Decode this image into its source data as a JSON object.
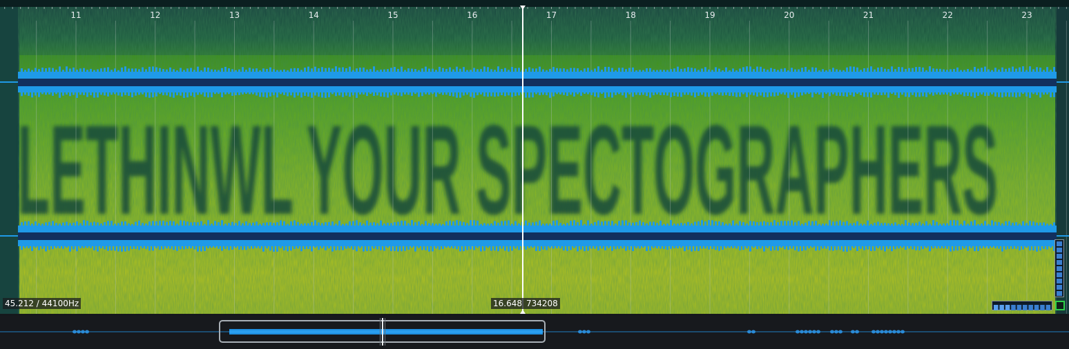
{
  "timeline": {
    "ticks": [
      "11",
      "12",
      "13",
      "14",
      "15",
      "16",
      "17",
      "18",
      "19",
      "20",
      "21",
      "22",
      "23"
    ]
  },
  "readouts": {
    "frequency": "45.212 / 44100Hz",
    "time": "16.648",
    "sample": "734208"
  },
  "colors": {
    "waveform": "#1f9ae8",
    "waveform_core": "#12305e",
    "spectrogram_low": "#0f3b3a",
    "spectrogram_mid": "#4e9a1e",
    "spectrogram_high": "#c9c51c",
    "cursor": "#ffffff",
    "overview_bg": "#17191d"
  },
  "icons": {
    "meter_toggle": "square-toggle-icon"
  }
}
